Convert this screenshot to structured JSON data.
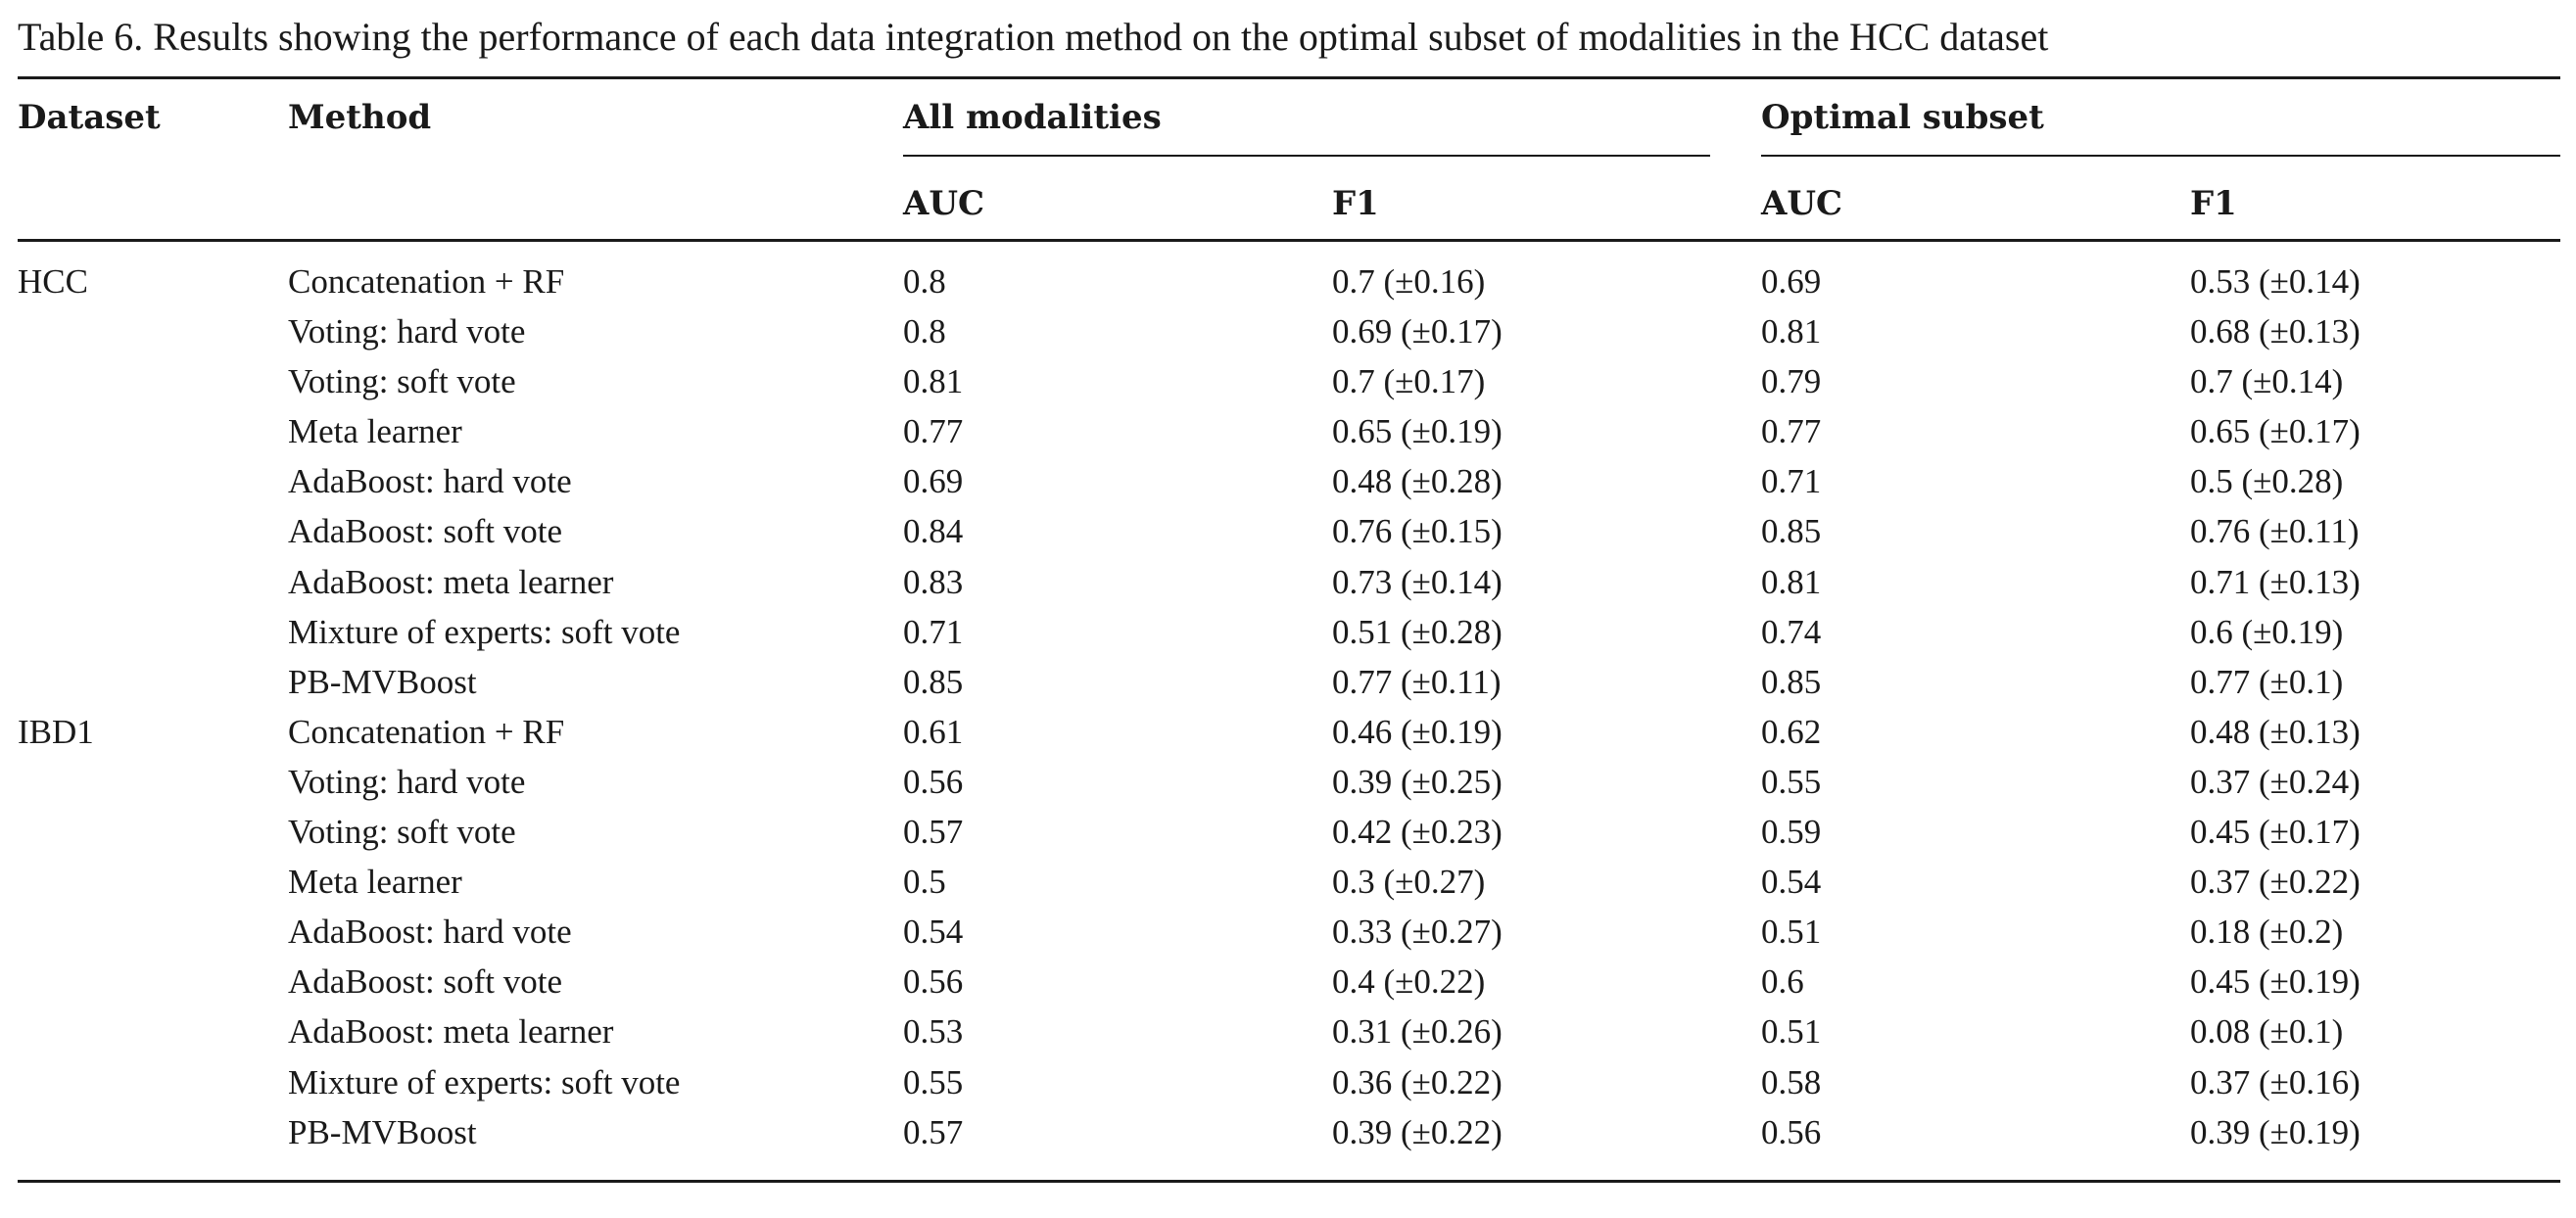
{
  "caption": "Table 6.  Results showing the performance of each data integration method on the optimal subset of modalities in the HCC dataset",
  "headers": {
    "dataset": "Dataset",
    "method": "Method",
    "group_all": "All modalities",
    "group_optimal": "Optimal subset",
    "auc_all": "AUC",
    "f1_all": "F1",
    "auc_optimal": "AUC",
    "f1_optimal": "F1"
  },
  "rows": [
    {
      "dataset": "HCC",
      "method": "Concatenation + RF",
      "auc_all": "0.8",
      "f1_all": "0.7 (±0.16)",
      "auc_opt": "0.69",
      "f1_opt": "0.53 (±0.14)"
    },
    {
      "dataset": "",
      "method": "Voting: hard vote",
      "auc_all": "0.8",
      "f1_all": "0.69 (±0.17)",
      "auc_opt": "0.81",
      "f1_opt": "0.68 (±0.13)"
    },
    {
      "dataset": "",
      "method": "Voting: soft vote",
      "auc_all": "0.81",
      "f1_all": "0.7 (±0.17)",
      "auc_opt": "0.79",
      "f1_opt": "0.7 (±0.14)"
    },
    {
      "dataset": "",
      "method": "Meta learner",
      "auc_all": "0.77",
      "f1_all": "0.65 (±0.19)",
      "auc_opt": "0.77",
      "f1_opt": "0.65 (±0.17)"
    },
    {
      "dataset": "",
      "method": "AdaBoost: hard vote",
      "auc_all": "0.69",
      "f1_all": "0.48 (±0.28)",
      "auc_opt": "0.71",
      "f1_opt": "0.5 (±0.28)"
    },
    {
      "dataset": "",
      "method": "AdaBoost: soft vote",
      "auc_all": "0.84",
      "f1_all": "0.76 (±0.15)",
      "auc_opt": "0.85",
      "f1_opt": "0.76 (±0.11)"
    },
    {
      "dataset": "",
      "method": "AdaBoost: meta learner",
      "auc_all": "0.83",
      "f1_all": "0.73 (±0.14)",
      "auc_opt": "0.81",
      "f1_opt": "0.71 (±0.13)"
    },
    {
      "dataset": "",
      "method": "Mixture of experts: soft vote",
      "auc_all": "0.71",
      "f1_all": "0.51 (±0.28)",
      "auc_opt": "0.74",
      "f1_opt": "0.6 (±0.19)"
    },
    {
      "dataset": "",
      "method": "PB-MVBoost",
      "auc_all": "0.85",
      "f1_all": "0.77 (±0.11)",
      "auc_opt": "0.85",
      "f1_opt": "0.77 (±0.1)"
    },
    {
      "dataset": "IBD1",
      "method": "Concatenation + RF",
      "auc_all": "0.61",
      "f1_all": "0.46 (±0.19)",
      "auc_opt": "0.62",
      "f1_opt": "0.48 (±0.13)"
    },
    {
      "dataset": "",
      "method": "Voting: hard vote",
      "auc_all": "0.56",
      "f1_all": "0.39 (±0.25)",
      "auc_opt": "0.55",
      "f1_opt": "0.37 (±0.24)"
    },
    {
      "dataset": "",
      "method": "Voting: soft vote",
      "auc_all": "0.57",
      "f1_all": "0.42 (±0.23)",
      "auc_opt": "0.59",
      "f1_opt": "0.45 (±0.17)"
    },
    {
      "dataset": "",
      "method": "Meta learner",
      "auc_all": "0.5",
      "f1_all": "0.3 (±0.27)",
      "auc_opt": "0.54",
      "f1_opt": "0.37 (±0.22)"
    },
    {
      "dataset": "",
      "method": "AdaBoost: hard vote",
      "auc_all": "0.54",
      "f1_all": "0.33 (±0.27)",
      "auc_opt": "0.51",
      "f1_opt": "0.18 (±0.2)"
    },
    {
      "dataset": "",
      "method": "AdaBoost: soft vote",
      "auc_all": "0.56",
      "f1_all": "0.4 (±0.22)",
      "auc_opt": "0.6",
      "f1_opt": "0.45 (±0.19)"
    },
    {
      "dataset": "",
      "method": "AdaBoost: meta learner",
      "auc_all": "0.53",
      "f1_all": "0.31 (±0.26)",
      "auc_opt": "0.51",
      "f1_opt": "0.08 (±0.1)"
    },
    {
      "dataset": "",
      "method": "Mixture of experts: soft vote",
      "auc_all": "0.55",
      "f1_all": "0.36 (±0.22)",
      "auc_opt": "0.58",
      "f1_opt": "0.37 (±0.16)"
    },
    {
      "dataset": "",
      "method": "PB-MVBoost",
      "auc_all": "0.57",
      "f1_all": "0.39 (±0.22)",
      "auc_opt": "0.56",
      "f1_opt": "0.39 (±0.19)"
    }
  ]
}
